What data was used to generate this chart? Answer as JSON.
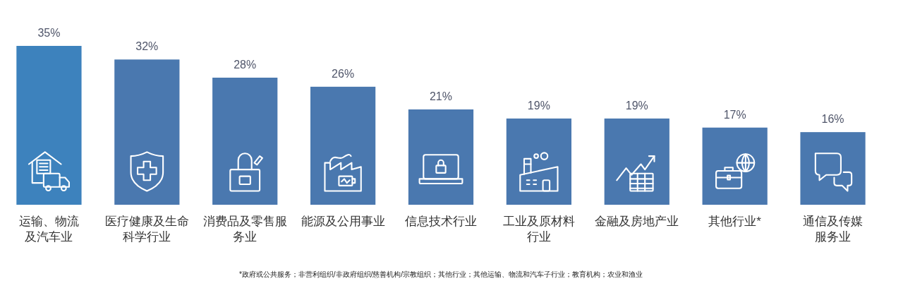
{
  "chart_data": {
    "type": "bar",
    "categories": [
      "运输、物流及汽车业",
      "医疗健康及生命科学行业",
      "消费品及零售服务业",
      "能源及公用事业",
      "信息技术行业",
      "工业及原材料行业",
      "金融及房地产业",
      "其他行业*",
      "通信及传媒服务业"
    ],
    "values": [
      35,
      32,
      28,
      26,
      21,
      19,
      19,
      17,
      16
    ],
    "value_labels": [
      "35%",
      "32%",
      "28%",
      "26%",
      "21%",
      "19%",
      "19%",
      "17%",
      "16%"
    ],
    "colors": [
      "#3d82bd",
      "#4a78af",
      "#4a78af",
      "#4a78af",
      "#4a78af",
      "#4a78af",
      "#4a78af",
      "#4a78af",
      "#4a78af"
    ],
    "annotations": [
      "*政府或公共服务；非营利组织/非政府组织/慈善机构/宗教组织；其他行业；其他运输、物流和汽车子行业；教育机构；农业和渔业"
    ]
  }
}
